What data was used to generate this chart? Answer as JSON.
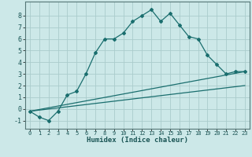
{
  "bg_color": "#cce8e8",
  "grid_color": "#aacccc",
  "line_color": "#1a6e6e",
  "xlabel": "Humidex (Indice chaleur)",
  "xlim": [
    -0.5,
    23.5
  ],
  "ylim": [
    -1.7,
    9.2
  ],
  "xticks": [
    0,
    1,
    2,
    3,
    4,
    5,
    6,
    7,
    8,
    9,
    10,
    11,
    12,
    13,
    14,
    15,
    16,
    17,
    18,
    19,
    20,
    21,
    22,
    23
  ],
  "yticks": [
    -1,
    0,
    1,
    2,
    3,
    4,
    5,
    6,
    7,
    8
  ],
  "line1_x": [
    0,
    1,
    2,
    3,
    4,
    5,
    6,
    7,
    8,
    9,
    10,
    11,
    12,
    13,
    14,
    15,
    16,
    17,
    18,
    19,
    20,
    21,
    22,
    23
  ],
  "line1_y": [
    -0.2,
    -0.7,
    -1.0,
    -0.2,
    1.2,
    1.5,
    3.0,
    4.8,
    6.0,
    6.0,
    6.5,
    7.5,
    8.0,
    8.5,
    7.5,
    8.2,
    7.2,
    6.2,
    6.0,
    4.6,
    3.8,
    3.0,
    3.2,
    3.2
  ],
  "line2_x": [
    0,
    23
  ],
  "line2_y": [
    -0.2,
    3.2
  ],
  "line3_x": [
    0,
    23
  ],
  "line3_y": [
    -0.2,
    2.0
  ],
  "xlabel_fontsize": 6.5,
  "tick_fontsize": 5.5,
  "marker": "D",
  "markersize": 2.0,
  "linewidth": 0.9
}
